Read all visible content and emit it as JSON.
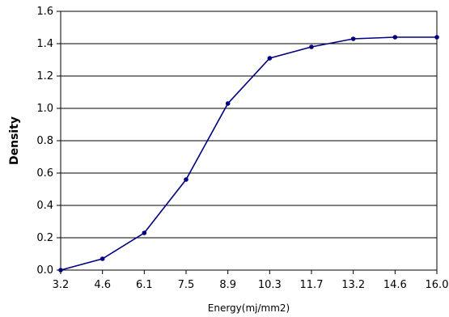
{
  "chart_data": {
    "type": "line",
    "title": "",
    "xlabel": "Energy(mj/mm2)",
    "ylabel": "Density",
    "categories": [
      "3.2",
      "4.6",
      "6.1",
      "7.5",
      "8.9",
      "10.3",
      "11.7",
      "13.2",
      "14.6",
      "16.0"
    ],
    "series": [
      {
        "values": [
          0.0,
          0.07,
          0.23,
          0.56,
          1.03,
          1.31,
          1.38,
          1.43,
          1.44,
          1.44
        ]
      }
    ],
    "yticks": [
      "0.0",
      "0.2",
      "0.4",
      "0.6",
      "0.8",
      "1.0",
      "1.2",
      "1.4",
      "1.6"
    ],
    "ylim": [
      0,
      1.6
    ],
    "grid": "horizontal",
    "legend": "none",
    "colors": {
      "line": "#000080",
      "grid": "#000000",
      "axis": "#000000"
    }
  }
}
